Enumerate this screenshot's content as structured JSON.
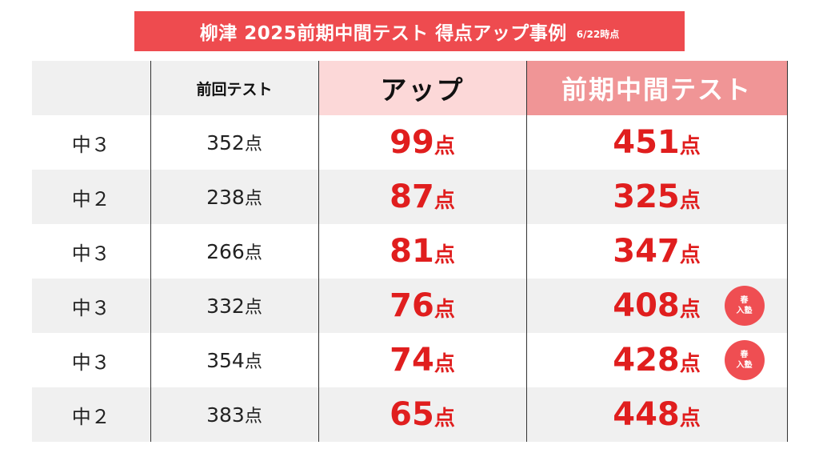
{
  "title": {
    "main": "柳津 2025前期中間テスト 得点アップ事例",
    "date": "6/22時点",
    "bg_color": "#ee4b4f"
  },
  "table": {
    "headers": {
      "grade": "",
      "previous": "前回テスト",
      "up": "アップ",
      "score": "前期中間テスト"
    },
    "unit": "点",
    "accent_color": "#e01e1e",
    "rows": [
      {
        "grade": "中３",
        "previous": "352",
        "up": "99",
        "score": "451",
        "badge": null
      },
      {
        "grade": "中２",
        "previous": "238",
        "up": "87",
        "score": "325",
        "badge": null
      },
      {
        "grade": "中３",
        "previous": "266",
        "up": "81",
        "score": "347",
        "badge": null
      },
      {
        "grade": "中３",
        "previous": "332",
        "up": "76",
        "score": "408",
        "badge": {
          "line1": "春",
          "line2": "入塾"
        }
      },
      {
        "grade": "中３",
        "previous": "354",
        "up": "74",
        "score": "428",
        "badge": {
          "line1": "春",
          "line2": "入塾"
        }
      },
      {
        "grade": "中２",
        "previous": "383",
        "up": "65",
        "score": "448",
        "badge": null
      }
    ]
  }
}
